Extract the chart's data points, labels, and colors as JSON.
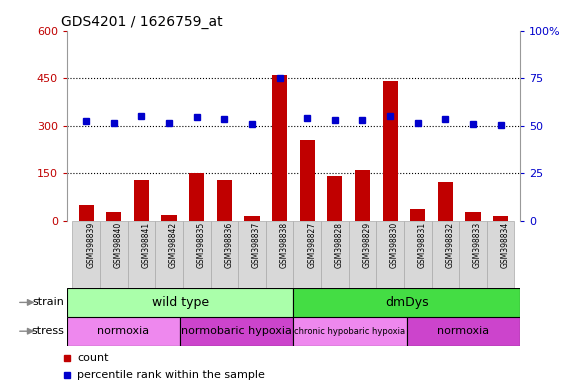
{
  "title": "GDS4201 / 1626759_at",
  "samples": [
    "GSM398839",
    "GSM398840",
    "GSM398841",
    "GSM398842",
    "GSM398835",
    "GSM398836",
    "GSM398837",
    "GSM398838",
    "GSM398827",
    "GSM398828",
    "GSM398829",
    "GSM398830",
    "GSM398831",
    "GSM398832",
    "GSM398833",
    "GSM398834"
  ],
  "counts": [
    50,
    28,
    128,
    18,
    150,
    130,
    15,
    460,
    255,
    140,
    160,
    440,
    38,
    122,
    28,
    15
  ],
  "percentile_ranks": [
    52.5,
    51.5,
    55,
    51.5,
    54.5,
    53.5,
    51,
    75,
    54,
    53,
    53,
    55,
    51.5,
    53.5,
    51,
    50.5
  ],
  "bar_color": "#c00000",
  "dot_color": "#0000cc",
  "ylim_left": [
    0,
    600
  ],
  "ylim_right": [
    0,
    100
  ],
  "yticks_left": [
    0,
    150,
    300,
    450,
    600
  ],
  "ytick_labels_left": [
    "0",
    "150",
    "300",
    "450",
    "600"
  ],
  "yticks_right": [
    0,
    25,
    50,
    75,
    100
  ],
  "ytick_labels_right": [
    "0",
    "25",
    "50",
    "75",
    "100%"
  ],
  "strain_groups": [
    {
      "label": "wild type",
      "start": 0,
      "end": 8,
      "color": "#aaffaa"
    },
    {
      "label": "dmDys",
      "start": 8,
      "end": 16,
      "color": "#44dd44"
    }
  ],
  "stress_groups": [
    {
      "label": "normoxia",
      "start": 0,
      "end": 4,
      "color": "#ee88ee"
    },
    {
      "label": "normobaric hypoxia",
      "start": 4,
      "end": 8,
      "color": "#cc44cc"
    },
    {
      "label": "chronic hypobaric hypoxia",
      "start": 8,
      "end": 12,
      "color": "#ee88ee"
    },
    {
      "label": "normoxia",
      "start": 12,
      "end": 16,
      "color": "#cc44cc"
    }
  ],
  "legend_items": [
    {
      "label": "count",
      "color": "#c00000"
    },
    {
      "label": "percentile rank within the sample",
      "color": "#0000cc"
    }
  ]
}
